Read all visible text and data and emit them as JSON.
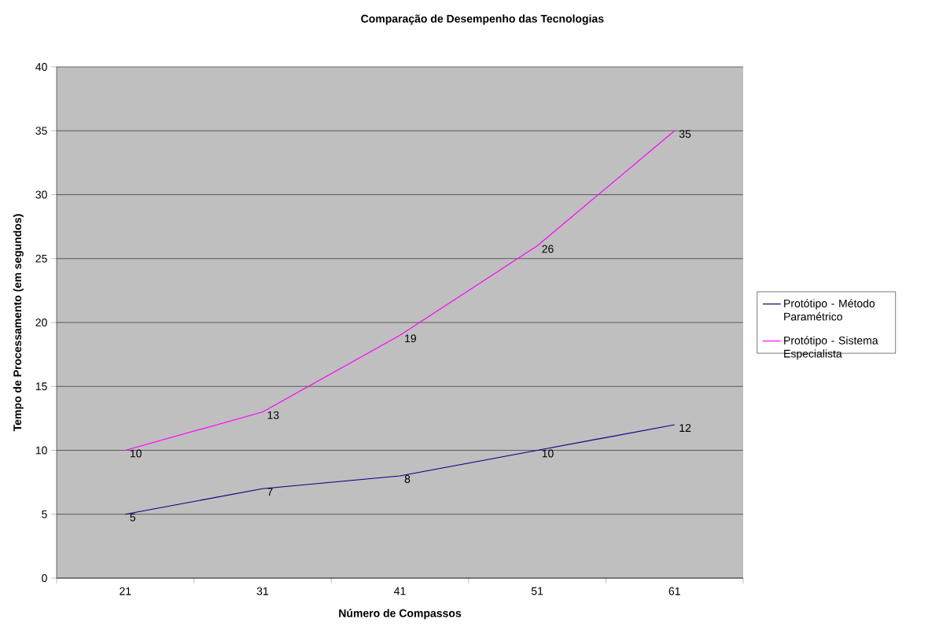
{
  "chart_data": {
    "type": "line",
    "title": "Comparação de Desempenho das Tecnologias",
    "xlabel": "Número de Compassos",
    "ylabel": "Tempo de Processamento (em segundos)",
    "categories": [
      "21",
      "31",
      "41",
      "51",
      "61"
    ],
    "series": [
      {
        "name": "Protótipo - Método Paramétrico",
        "color": "#000080",
        "values": [
          5,
          7,
          8,
          10,
          12
        ]
      },
      {
        "name": "Protótipo - Sistema Especialista",
        "color": "#ff00ff",
        "values": [
          10,
          13,
          19,
          26,
          35
        ]
      }
    ],
    "ylim": [
      0,
      40
    ],
    "yticks": [
      0,
      5,
      10,
      15,
      20,
      25,
      30,
      35,
      40
    ],
    "grid": "y",
    "legend": "right",
    "data_labels": true,
    "marker": "none",
    "line_style": "solid"
  }
}
